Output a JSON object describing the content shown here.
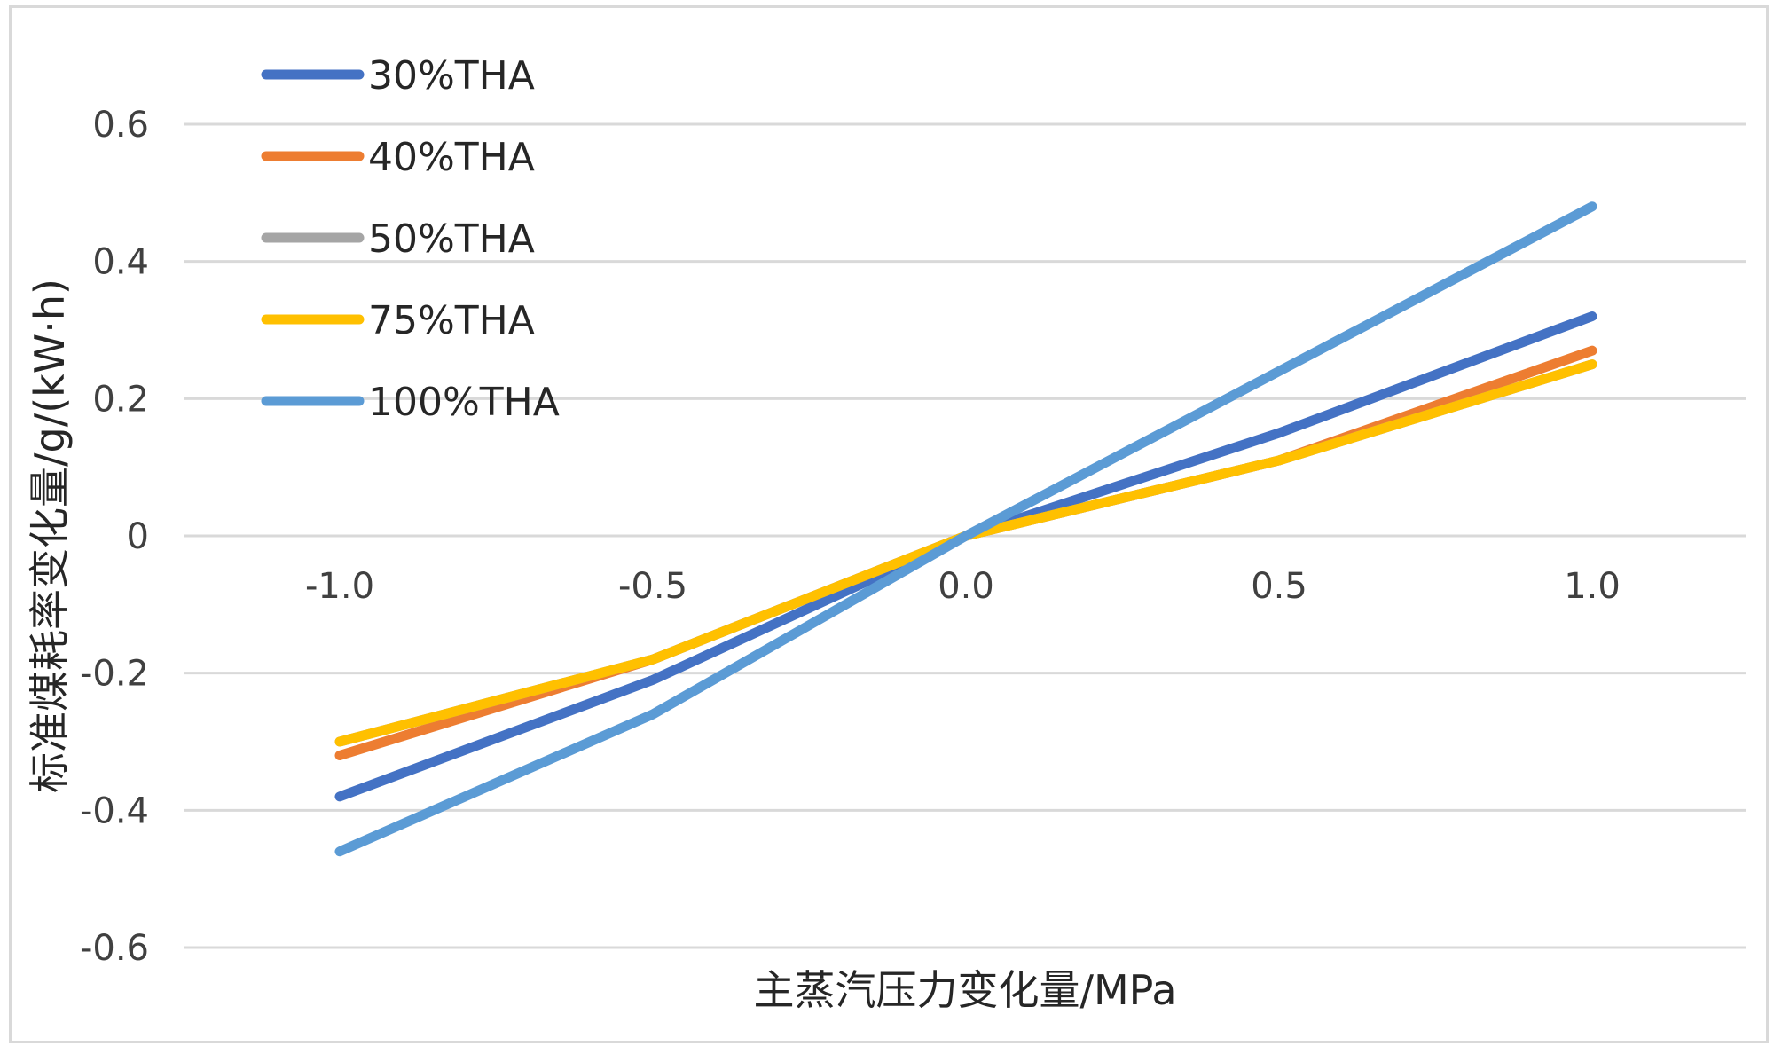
{
  "chart_data": {
    "type": "line",
    "x": [
      -1.0,
      -0.5,
      0.0,
      0.5,
      1.0
    ],
    "x_tick_labels": [
      "-1.0",
      "-0.5",
      "0.0",
      "0.5",
      "1.0"
    ],
    "y_tick_labels": [
      "0.6",
      "0.4",
      "0.2",
      "0",
      "-0.2",
      "-0.4",
      "-0.6"
    ],
    "xlabel": "主蒸汽压力变化量/MPa",
    "ylabel": "标准煤耗率变化量/g/(kW·h)",
    "ylim": [
      -0.6,
      0.6
    ],
    "xlim": [
      -1.0,
      1.0
    ],
    "grid": true,
    "legend_position": "top-left",
    "series": [
      {
        "name": "30%THA",
        "color": "#4472C4",
        "values": [
          -0.38,
          -0.21,
          0.0,
          0.15,
          0.32
        ]
      },
      {
        "name": "40%THA",
        "color": "#ED7D31",
        "values": [
          -0.32,
          -0.18,
          0.0,
          0.11,
          0.27
        ]
      },
      {
        "name": "50%THA",
        "color": "#A5A5A5",
        "values": [
          -0.3,
          -0.18,
          0.0,
          0.11,
          0.25
        ]
      },
      {
        "name": "75%THA",
        "color": "#FFC000",
        "values": [
          -0.3,
          -0.18,
          0.0,
          0.11,
          0.25
        ]
      },
      {
        "name": "100%THA",
        "color": "#5B9BD5",
        "values": [
          -0.46,
          -0.26,
          0.0,
          0.24,
          0.48
        ]
      }
    ]
  }
}
